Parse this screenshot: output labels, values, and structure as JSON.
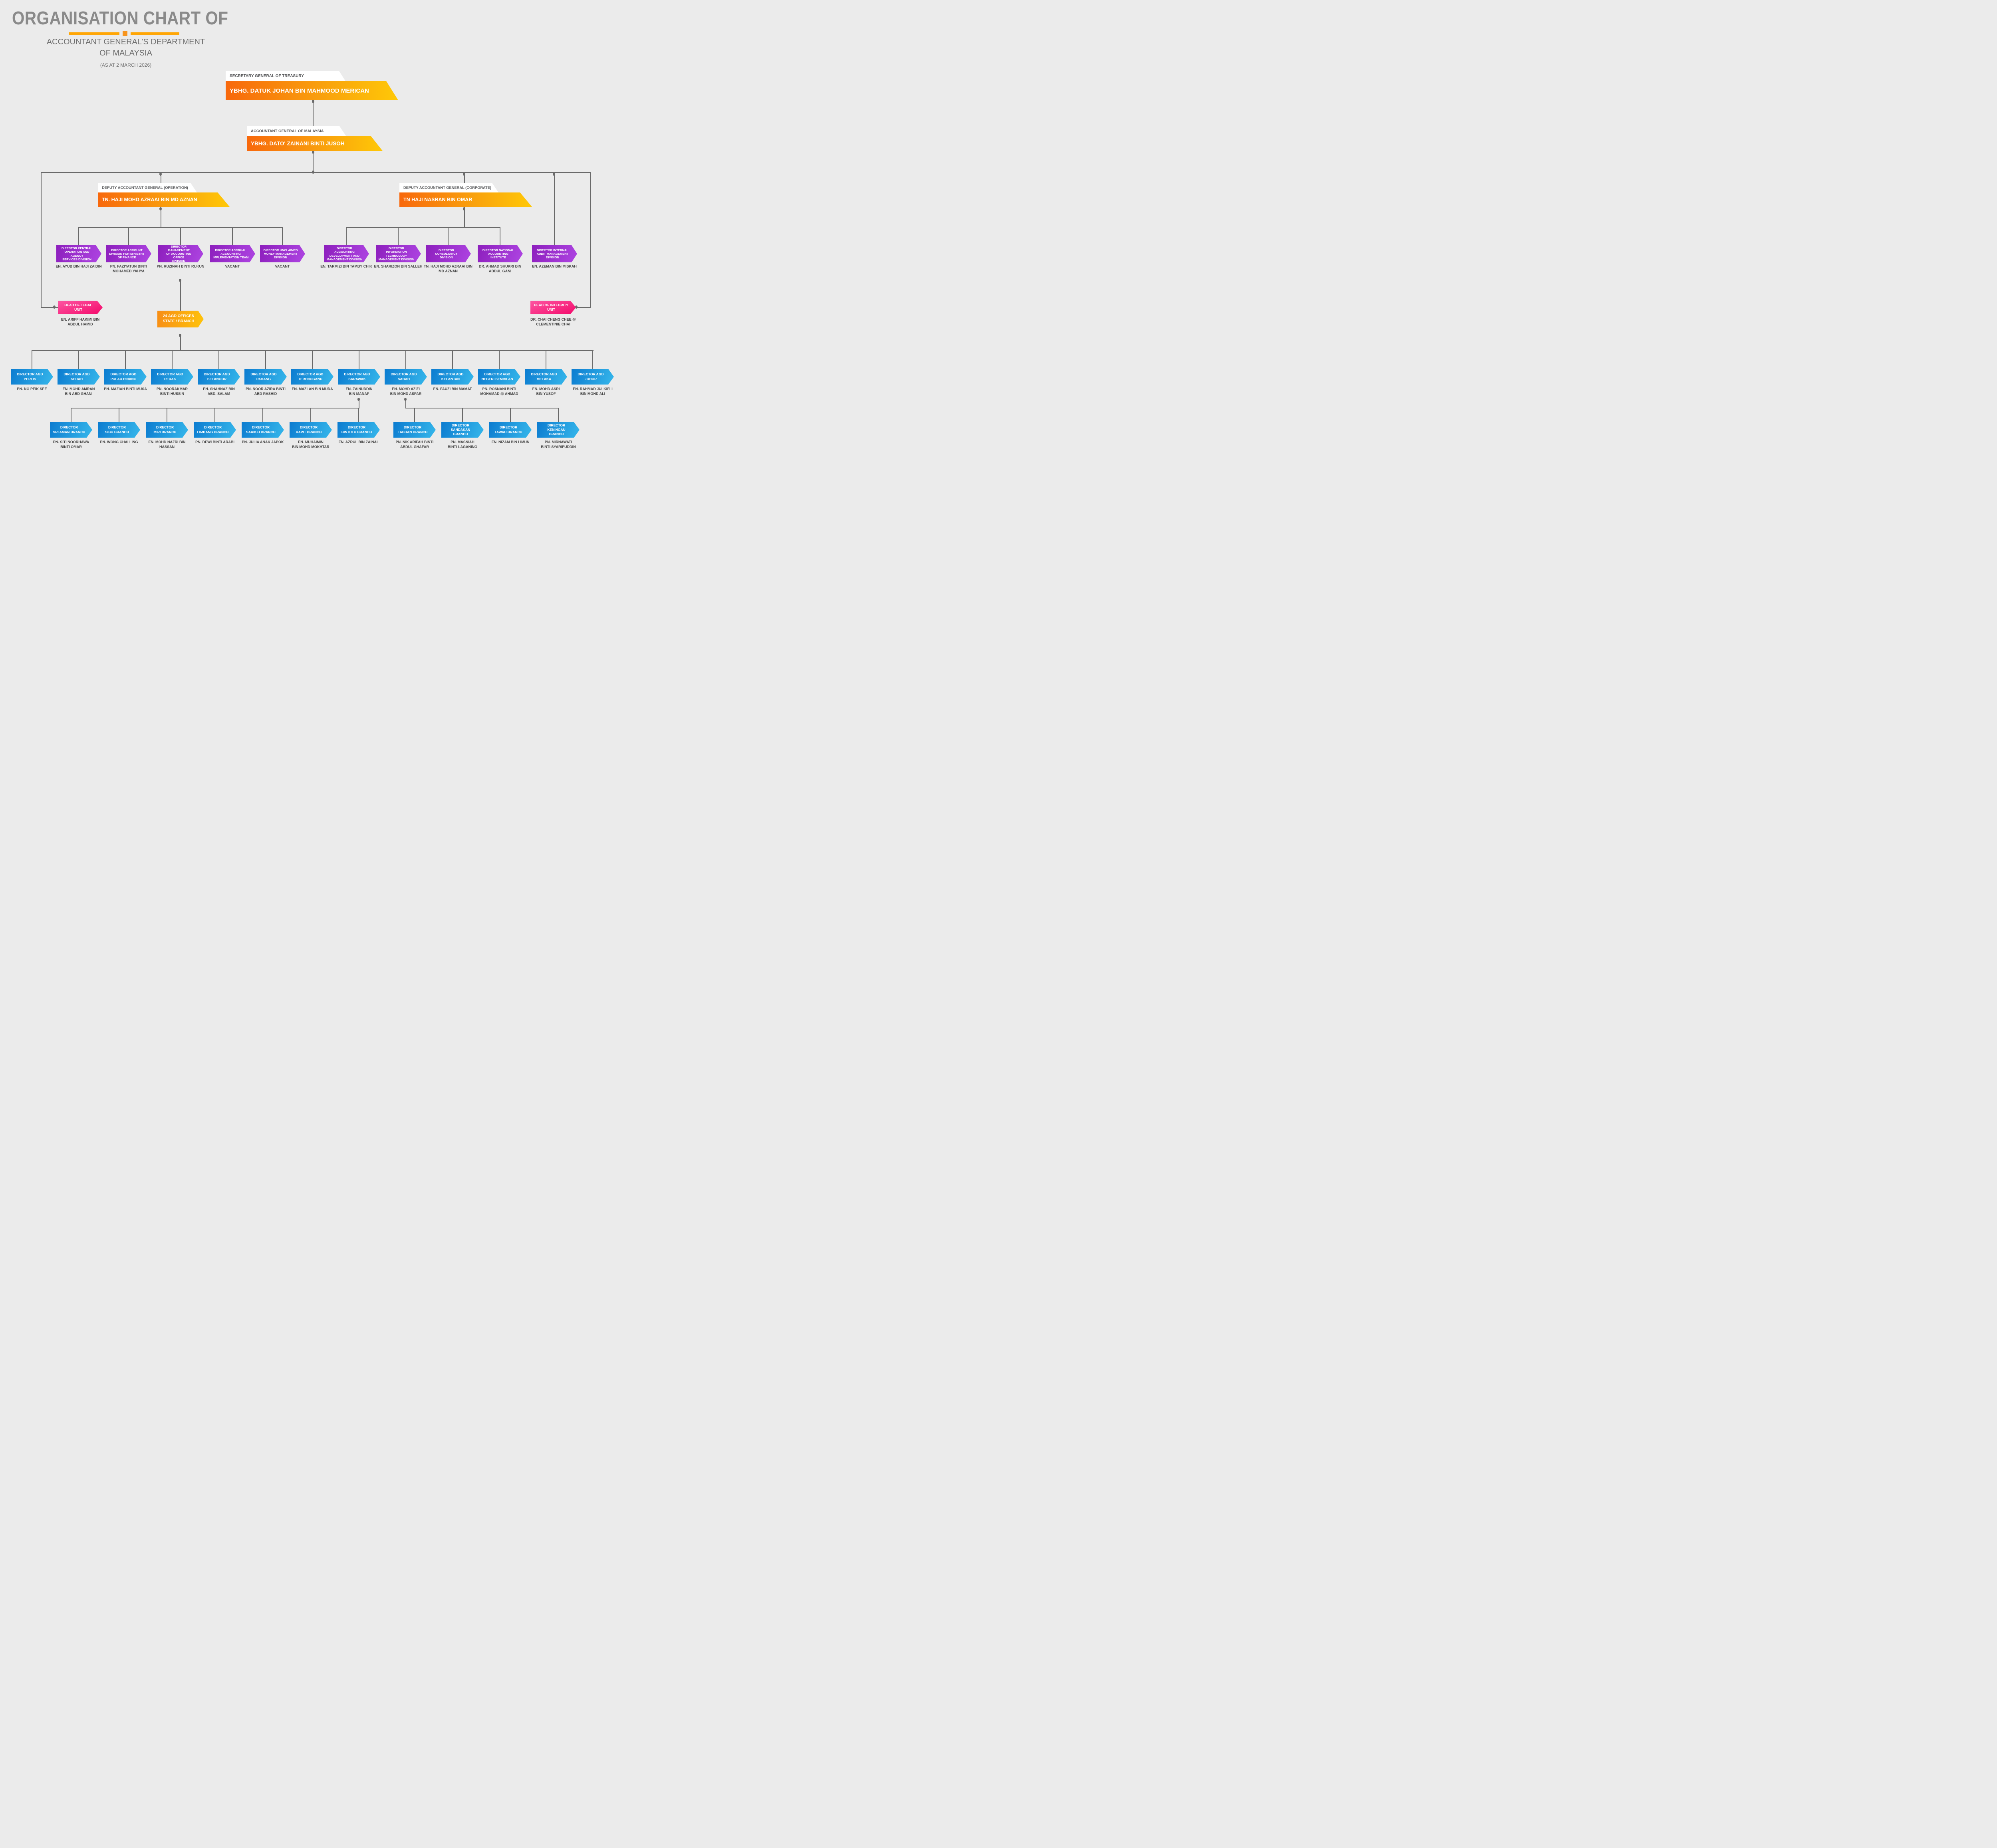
{
  "header": {
    "title": "ORGANISATION CHART OF",
    "subtitle_line1": "ACCOUNTANT GENERAL’S DEPARTMENT",
    "subtitle_line2": "OF MALAYSIA",
    "as_at": "(AS AT 2 MARCH 2026)"
  },
  "colors": {
    "background": "#ebebeb",
    "title_text": "#8a8a8a",
    "subtitle_text": "#6e6e6e",
    "underline_orange": "#ffa606",
    "underline_square": "#f7941d",
    "orange_gradient": [
      "#f8680c",
      "#ffc807"
    ],
    "purple_gradient": [
      "#8d1fbd",
      "#ae45e2"
    ],
    "blue_gradient": [
      "#0c7cd0",
      "#36b7eb"
    ],
    "pink_gradient": [
      "#fd56a2",
      "#f40a6b"
    ],
    "small_orange_gradient": [
      "#f78d15",
      "#ffc40a"
    ],
    "connector_line": "#6a6a6a",
    "band_label_text": "#57585a",
    "name_text": "#454545"
  },
  "nodes": {
    "secretary": {
      "label": "SECRETARY GENERAL OF TREASURY",
      "name": "YBHG. DATUK JOHAN BIN MAHMOOD MERICAN"
    },
    "accountant_general": {
      "label": "ACCOUNTANT GENERAL OF MALAYSIA",
      "name": "YBHG. DATO'  ZAINANI BINTI JUSOH"
    },
    "deputy_operation": {
      "label": "DEPUTY ACCOUNTANT GENERAL  (OPERATION)",
      "name": "TN. HAJI MOHD AZRAAI BIN MD AZNAN"
    },
    "deputy_corporate": {
      "label": "DEPUTY ACCOUNTANT GENERAL (CORPORATE)",
      "name": "TN HAJI NASRAN BIN OMAR"
    },
    "legal_unit": {
      "title": "HEAD OF LEGAL UNIT",
      "name": "EN. ARIFF HAKIMI BIN\nABDUL HAMID"
    },
    "integrity_unit": {
      "title": "HEAD OF INTEGRITY UNIT",
      "name": "DR. CHAI CHENG CHEE @\nCLEMENTINIE CHAI"
    },
    "agd_offices": {
      "label": "24 AGD OFFICES\nSTATE / BRANCH"
    }
  },
  "divisions": [
    {
      "title": "DIRECTOR CENTRAL\nOPERATION AND AGENCY\nSERVICES DIVISION",
      "name": "EN. AYUB BIN HAJI ZAIDIN"
    },
    {
      "title": "DIRECTOR ACCOUNT\nDIVISION FOR MINISTRY\nOF FINANCE",
      "name": "PN. FAZIYATUN BINTI\nMOHAMED YAHYA"
    },
    {
      "title": "DIRECTOR MANAGEMENT\nOF ACCOUNTING OFFICE\nDIVISION",
      "name": "PN. RUZINAH BINTI RUKUN"
    },
    {
      "title": "DIRECTOR ACCRUAL\nACCOUNTING\nIMPLEMENTATION TEAM",
      "name": "VACANT"
    },
    {
      "title": "DIRECTOR UNCLAIMED\nMONEY MANAGEMENT\nDIVISION",
      "name": "VACANT"
    },
    {
      "title": "DIRECTOR ACCOUNTING\nDEVELOPMENT AND\nMANAGEMENT DIVISION",
      "name": "EN. TARMIZI BIN TAMBY CHIK"
    },
    {
      "title": "DIRECTOR INFORMATION\nTECHNOLOGY\nMANAGEMENT DIVISION",
      "name": "EN. SHARIZON BIN SALLEH"
    },
    {
      "title": "DIRECTOR CONSULTANCY\nDIVISION",
      "name": "TN. HAJI MOHD AZRAAI BIN\nMD AZNAN"
    },
    {
      "title": "DIRECTOR NATIONAL\nACCOUNTING INSTITUTE",
      "name": "DR. AHMAD SHUKRI BIN\nABDUL GANI"
    },
    {
      "title": "DIRECTOR INTERNAL\nAUDIT MANAGEMENT\nDIVISION",
      "name": "EN. AZEMAN BIN MISKAH"
    }
  ],
  "states": [
    {
      "title": "DIRECTOR AGD\nPERLIS",
      "name": "PN. NG PEIK SEE"
    },
    {
      "title": "DIRECTOR AGD\nKEDAH",
      "name": "EN. MOHD AMRAN\nBIN ABD GHANI"
    },
    {
      "title": "DIRECTOR AGD\nPULAU PINANG",
      "name": "PN. MAZIAH BINTI MUSA"
    },
    {
      "title": "DIRECTOR AGD\nPERAK",
      "name": "PN. NOORAKMAR\nBINTI HUSSIN"
    },
    {
      "title": "DIRECTOR AGD\nSELANGOR",
      "name": "EN. SHAHNAZ BIN\nABD. SALAM"
    },
    {
      "title": "DIRECTOR AGD\nPAHANG",
      "name": "PN. NOOR AZIRA BINTI\nABD RASHID"
    },
    {
      "title": "DIRECTOR AGD\nTERENGGANU",
      "name": "EN. MAZLAN BIN MUDA"
    },
    {
      "title": "DIRECTOR AGD\nSARAWAK",
      "name": "EN. ZAINUDDIN\nBIN MANAF"
    },
    {
      "title": "DIRECTOR AGD\nSABAH",
      "name": "EN. MOHD AZIZI\nBIN MOHD ASPAR"
    },
    {
      "title": "DIRECTOR AGD\nKELANTAN",
      "name": "EN. FAUZI BIN MAMAT"
    },
    {
      "title": "DIRECTOR AGD\nNEGERI SEMBILAN",
      "name": "PN. ROSNANI BINTI\nMOHAMAD @ AHMAD"
    },
    {
      "title": "DIRECTOR AGD\nMELAKA",
      "name": "EN. MOHD ASRI\nBIN YUSOF"
    },
    {
      "title": "DIRECTOR AGD\nJOHOR",
      "name": "EN. RAHMAD JULKIFLI\nBIN MOHD ALI"
    }
  ],
  "branches": [
    {
      "title": "DIRECTOR\nSRI AMAN BRANCH",
      "name": "PN. SITI NOORHAWA\nBINTI OMAR"
    },
    {
      "title": "DIRECTOR\nSIBU BRANCH",
      "name": "PN. WONG CHAI LING"
    },
    {
      "title": "DIRECTOR\nMIRI BRANCH",
      "name": "EN. MOHD NAZRI BIN\nHASSAN"
    },
    {
      "title": "DIRECTOR\nLIMBANG BRANCH",
      "name": "PN. DEWI BINTI ARABI"
    },
    {
      "title": "DIRECTOR\nSARIKEI BRANCH",
      "name": "PN. JULIA ANAK JAPOK"
    },
    {
      "title": "DIRECTOR\nKAPIT BRANCH",
      "name": "EN. MUHAIMIN\nBIN MOHD MOKHTAR"
    },
    {
      "title": "DIRECTOR\nBINTULU BRANCH",
      "name": "EN. AZRUL BIN ZAINAL"
    },
    {
      "title": "DIRECTOR\nLABUAN BRANCH",
      "name": "PN. NIK ARIFAH BINTI\nABDUL GHAFAR"
    },
    {
      "title": "DIRECTOR\nSANDAKAN BRANCH",
      "name": "PN. MASNIAH\nBINTI LAGANING"
    },
    {
      "title": "DIRECTOR\nTAWAU BRANCH",
      "name": "EN. NIZAM BIN LIMUN"
    },
    {
      "title": "DIRECTOR\nKENINGAU BRANCH",
      "name": "PN. MIRNAWATI\nBINTI SYARIPUDDIN"
    }
  ]
}
